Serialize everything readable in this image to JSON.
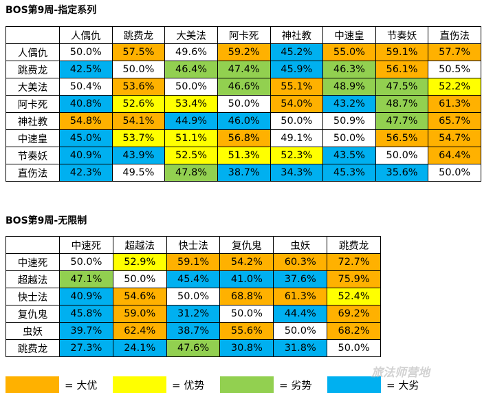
{
  "table1": {
    "title": "BOS第9周-指定系列",
    "headers": [
      "人偶仇",
      "跳费龙",
      "大美法",
      "阿卡死",
      "神社教",
      "中速皇",
      "节奏妖",
      "直伤法"
    ],
    "rows": [
      {
        "label": "人偶仇",
        "cells": [
          [
            "50.0%",
            "w"
          ],
          [
            "57.5%",
            "o"
          ],
          [
            "49.6%",
            "w"
          ],
          [
            "59.2%",
            "o"
          ],
          [
            "45.2%",
            "b"
          ],
          [
            "55.0%",
            "o"
          ],
          [
            "59.1%",
            "o"
          ],
          [
            "57.7%",
            "o"
          ]
        ]
      },
      {
        "label": "跳费龙",
        "cells": [
          [
            "42.5%",
            "b"
          ],
          [
            "50.0%",
            "w"
          ],
          [
            "46.4%",
            "g"
          ],
          [
            "47.4%",
            "g"
          ],
          [
            "45.9%",
            "b"
          ],
          [
            "46.3%",
            "g"
          ],
          [
            "56.1%",
            "o"
          ],
          [
            "50.5%",
            "w"
          ]
        ]
      },
      {
        "label": "大美法",
        "cells": [
          [
            "50.4%",
            "w"
          ],
          [
            "53.6%",
            "o"
          ],
          [
            "50.0%",
            "w"
          ],
          [
            "46.6%",
            "g"
          ],
          [
            "55.1%",
            "o"
          ],
          [
            "48.9%",
            "g"
          ],
          [
            "47.5%",
            "g"
          ],
          [
            "52.2%",
            "y"
          ]
        ]
      },
      {
        "label": "阿卡死",
        "cells": [
          [
            "40.8%",
            "b"
          ],
          [
            "52.6%",
            "y"
          ],
          [
            "53.4%",
            "y"
          ],
          [
            "50.0%",
            "w"
          ],
          [
            "54.0%",
            "o"
          ],
          [
            "43.2%",
            "b"
          ],
          [
            "48.7%",
            "g"
          ],
          [
            "61.3%",
            "o"
          ]
        ]
      },
      {
        "label": "神社教",
        "cells": [
          [
            "54.8%",
            "o"
          ],
          [
            "54.1%",
            "o"
          ],
          [
            "44.9%",
            "b"
          ],
          [
            "46.0%",
            "b"
          ],
          [
            "50.0%",
            "w"
          ],
          [
            "50.9%",
            "w"
          ],
          [
            "47.7%",
            "g"
          ],
          [
            "65.7%",
            "o"
          ]
        ]
      },
      {
        "label": "中速皇",
        "cells": [
          [
            "45.0%",
            "b"
          ],
          [
            "53.7%",
            "y"
          ],
          [
            "51.1%",
            "y"
          ],
          [
            "56.8%",
            "o"
          ],
          [
            "49.1%",
            "w"
          ],
          [
            "50.0%",
            "w"
          ],
          [
            "56.5%",
            "o"
          ],
          [
            "54.7%",
            "o"
          ]
        ]
      },
      {
        "label": "节奏妖",
        "cells": [
          [
            "40.9%",
            "b"
          ],
          [
            "43.9%",
            "b"
          ],
          [
            "52.5%",
            "y"
          ],
          [
            "51.3%",
            "y"
          ],
          [
            "52.3%",
            "y"
          ],
          [
            "43.5%",
            "b"
          ],
          [
            "50.0%",
            "w"
          ],
          [
            "64.4%",
            "o"
          ]
        ]
      },
      {
        "label": "直伤法",
        "cells": [
          [
            "42.3%",
            "b"
          ],
          [
            "49.5%",
            "w"
          ],
          [
            "47.8%",
            "g"
          ],
          [
            "38.7%",
            "b"
          ],
          [
            "34.3%",
            "b"
          ],
          [
            "45.3%",
            "b"
          ],
          [
            "35.6%",
            "b"
          ],
          [
            "50.0%",
            "w"
          ]
        ]
      }
    ]
  },
  "table2": {
    "title": "BOS第9周-无限制",
    "headers": [
      "中速死",
      "超越法",
      "快士法",
      "复仇鬼",
      "虫妖",
      "跳费龙"
    ],
    "rows": [
      {
        "label": "中速死",
        "cells": [
          [
            "50.0%",
            "w"
          ],
          [
            "52.9%",
            "y"
          ],
          [
            "59.1%",
            "o"
          ],
          [
            "54.2%",
            "o"
          ],
          [
            "60.3%",
            "o"
          ],
          [
            "72.7%",
            "o"
          ]
        ]
      },
      {
        "label": "超越法",
        "cells": [
          [
            "47.1%",
            "g"
          ],
          [
            "50.0%",
            "w"
          ],
          [
            "45.4%",
            "b"
          ],
          [
            "41.0%",
            "b"
          ],
          [
            "37.6%",
            "b"
          ],
          [
            "75.9%",
            "o"
          ]
        ]
      },
      {
        "label": "快士法",
        "cells": [
          [
            "40.9%",
            "b"
          ],
          [
            "54.6%",
            "o"
          ],
          [
            "50.0%",
            "w"
          ],
          [
            "68.8%",
            "o"
          ],
          [
            "61.3%",
            "o"
          ],
          [
            "52.4%",
            "y"
          ]
        ]
      },
      {
        "label": "复仇鬼",
        "cells": [
          [
            "45.8%",
            "b"
          ],
          [
            "59.0%",
            "o"
          ],
          [
            "31.2%",
            "b"
          ],
          [
            "50.0%",
            "w"
          ],
          [
            "44.4%",
            "b"
          ],
          [
            "69.2%",
            "o"
          ]
        ]
      },
      {
        "label": "虫妖",
        "cells": [
          [
            "39.7%",
            "b"
          ],
          [
            "62.4%",
            "o"
          ],
          [
            "38.7%",
            "b"
          ],
          [
            "55.6%",
            "o"
          ],
          [
            "50.0%",
            "w"
          ],
          [
            "68.2%",
            "o"
          ]
        ]
      },
      {
        "label": "跳费龙",
        "cells": [
          [
            "27.3%",
            "b"
          ],
          [
            "24.1%",
            "b"
          ],
          [
            "47.6%",
            "g"
          ],
          [
            "30.8%",
            "b"
          ],
          [
            "31.8%",
            "b"
          ],
          [
            "50.0%",
            "w"
          ]
        ]
      }
    ]
  },
  "legend": [
    {
      "color": "#ffb100",
      "label": "= 大优"
    },
    {
      "color": "#ffff00",
      "label": "= 优势"
    },
    {
      "color": "#92d050",
      "label": "= 劣势"
    },
    {
      "color": "#00b0f0",
      "label": "= 大劣"
    }
  ],
  "watermark": "旅法师营地"
}
